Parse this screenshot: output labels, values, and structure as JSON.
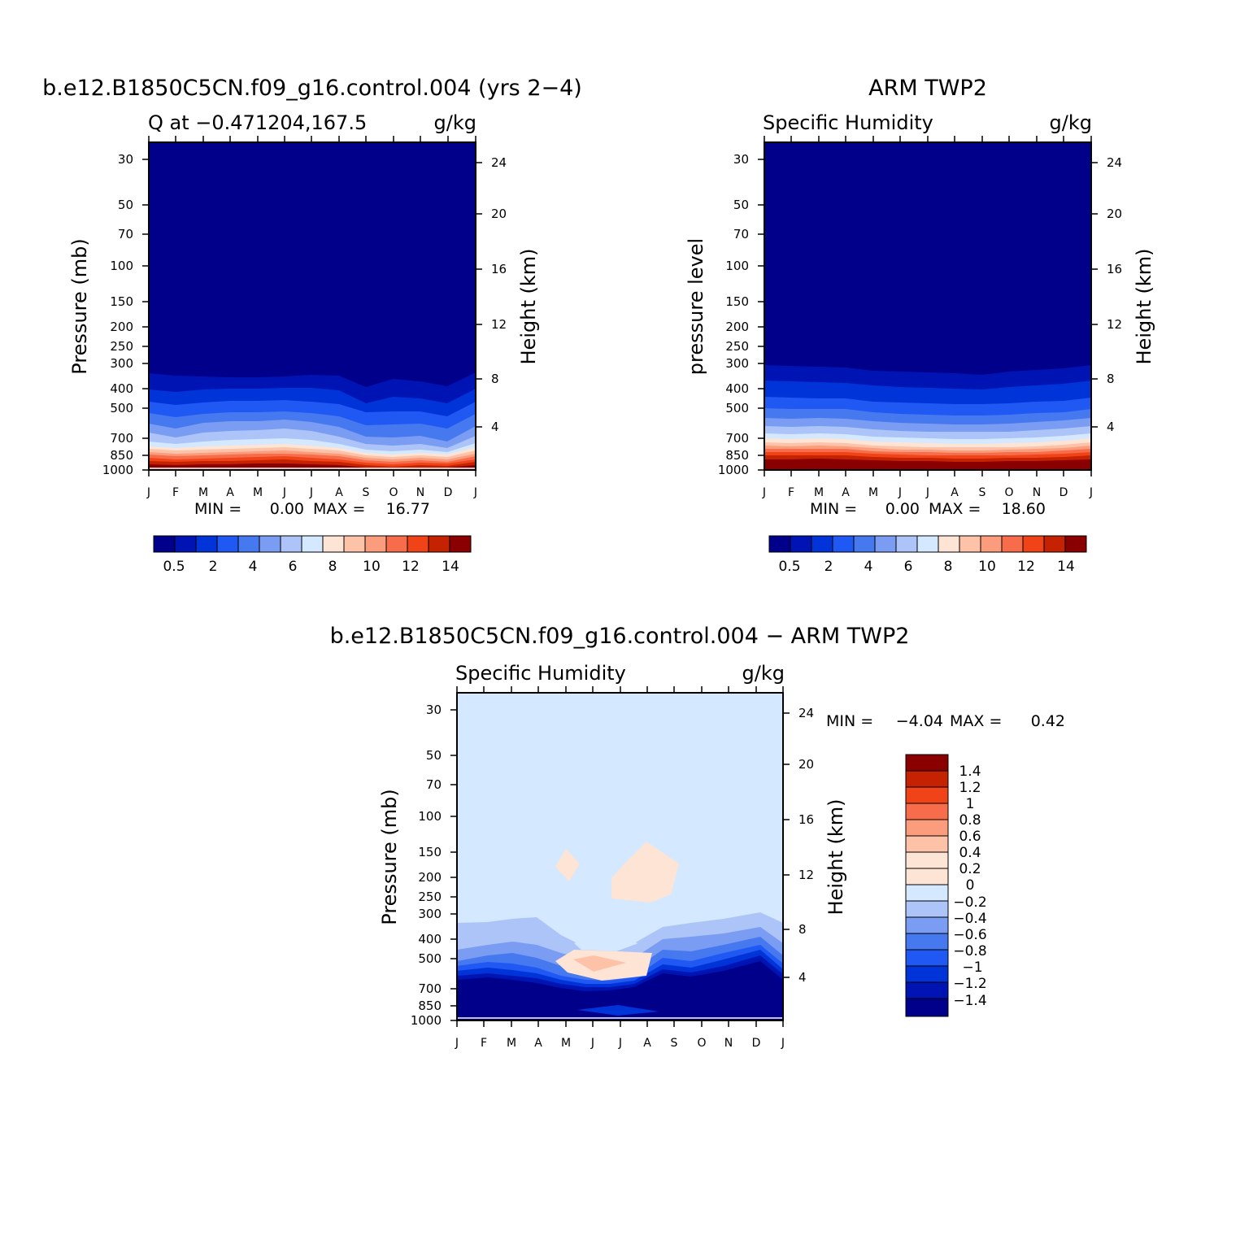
{
  "figure": {
    "months": [
      "J",
      "F",
      "M",
      "A",
      "M",
      "J",
      "J",
      "A",
      "S",
      "O",
      "N",
      "D",
      "J"
    ],
    "pressure_ticks": [
      "30",
      "50",
      "70",
      "100",
      "150",
      "200",
      "250",
      "300",
      "400",
      "500",
      "700",
      "850",
      "1000"
    ],
    "height_ticks": [
      "24",
      "20",
      "16",
      "12",
      "8",
      "4"
    ],
    "colors_abs": [
      "#00008a",
      "#0014b4",
      "#0034d8",
      "#1f58f2",
      "#4678f0",
      "#7a9cf2",
      "#adc4f8",
      "#d4e8ff",
      "#fee4d4",
      "#fdc2a8",
      "#fb9c7c",
      "#f76d4c",
      "#f04418",
      "#c42200",
      "#8a0000"
    ],
    "colors_diff": [
      "#00008a",
      "#0014b4",
      "#0034d8",
      "#1f58f2",
      "#4678f0",
      "#7a9cf2",
      "#adc4f8",
      "#d4e8ff",
      "#fee4d4",
      "#fdc2a8",
      "#fb9c7c",
      "#f76d4c",
      "#f04418",
      "#c42200",
      "#8a0000"
    ]
  },
  "panels": [
    {
      "title": "b.e12.B1850C5CN.f09_g16.control.004 (yrs 2−4)",
      "left_string": "Q at −0.471204,167.5",
      "right_string": "g/kg",
      "ylabel_left": "Pressure (mb)",
      "ylabel_right": "Height (km)",
      "min_label": "MIN =",
      "min_value": "0.00",
      "max_label": "MAX =",
      "max_value": "16.77",
      "colorbar_labels": [
        "0.5",
        "2",
        "4",
        "6",
        "8",
        "10",
        "12",
        "14"
      ]
    },
    {
      "title": "ARM TWP2",
      "left_string": "Specific Humidity",
      "right_string": "g/kg",
      "ylabel_left": "pressure level",
      "ylabel_right": "Height (km)",
      "min_label": "MIN =",
      "min_value": "0.00",
      "max_label": "MAX =",
      "max_value": "18.60",
      "colorbar_labels": [
        "0.5",
        "2",
        "4",
        "6",
        "8",
        "10",
        "12",
        "14"
      ]
    },
    {
      "title": "b.e12.B1850C5CN.f09_g16.control.004 − ARM TWP2",
      "left_string": "Specific Humidity",
      "right_string": "g/kg",
      "ylabel_left": "Pressure (mb)",
      "ylabel_right": "Height (km)",
      "min_label": "MIN =",
      "min_value": "−4.04",
      "max_label": "MAX =",
      "max_value": "0.42",
      "colorbar_labels": [
        "1.4",
        "1.2",
        "1",
        "0.8",
        "0.6",
        "0.4",
        "0.2",
        "0",
        "−0.2",
        "−0.4",
        "−0.6",
        "−0.8",
        "−1",
        "−1.2",
        "−1.4"
      ]
    }
  ],
  "chart_data": [
    {
      "type": "heatmap",
      "title": "b.e12.B1850C5CN.f09_g16.control.004 (yrs 2−4)",
      "variable": "Q at −0.471204,167.5",
      "units": "g/kg",
      "x": [
        "J",
        "F",
        "M",
        "A",
        "M",
        "J",
        "J",
        "A",
        "S",
        "O",
        "N",
        "D",
        "J"
      ],
      "y_pressure_mb": [
        30,
        50,
        70,
        100,
        150,
        200,
        250,
        300,
        400,
        500,
        700,
        850,
        1000
      ],
      "ylabel": "Pressure (mb)",
      "ylabel_right": "Height (km)",
      "contour_levels": [
        0.5,
        1,
        2,
        3,
        4,
        5,
        6,
        7,
        8,
        9,
        10,
        11,
        12,
        13,
        14
      ],
      "min": 0.0,
      "max": 16.77,
      "level_pressure_mb": {
        "0.5": [
          350,
          370,
          375,
          380,
          380,
          375,
          370,
          372,
          420,
          390,
          395,
          410,
          352
        ],
        "2": [
          430,
          470,
          460,
          455,
          455,
          455,
          460,
          470,
          540,
          540,
          535,
          585,
          480
        ],
        "4": [
          555,
          590,
          570,
          560,
          560,
          555,
          560,
          590,
          660,
          665,
          655,
          700,
          600
        ],
        "6": [
          690,
          720,
          705,
          695,
          690,
          685,
          695,
          720,
          780,
          790,
          780,
          800,
          720
        ],
        "8": [
          770,
          790,
          780,
          775,
          770,
          765,
          775,
          790,
          840,
          850,
          830,
          850,
          790
        ],
        "10": [
          820,
          840,
          830,
          825,
          820,
          815,
          825,
          840,
          880,
          890,
          870,
          880,
          840
        ],
        "12": [
          870,
          890,
          880,
          875,
          870,
          865,
          875,
          890,
          920,
          930,
          910,
          920,
          890
        ],
        "14": [
          930,
          940,
          935,
          930,
          930,
          925,
          930,
          945,
          965,
          975,
          955,
          960,
          940
        ]
      }
    },
    {
      "type": "heatmap",
      "title": "ARM TWP2",
      "variable": "Specific Humidity",
      "units": "g/kg",
      "x": [
        "J",
        "F",
        "M",
        "A",
        "M",
        "J",
        "J",
        "A",
        "S",
        "O",
        "N",
        "D",
        "J"
      ],
      "y_pressure_mb": [
        30,
        50,
        70,
        100,
        150,
        200,
        250,
        300,
        400,
        500,
        700,
        850,
        1000
      ],
      "ylabel": "pressure level",
      "ylabel_right": "Height (km)",
      "contour_levels": [
        0.5,
        1,
        2,
        3,
        4,
        5,
        6,
        7,
        8,
        9,
        10,
        11,
        12,
        13,
        14
      ],
      "min": 0.0,
      "max": 18.6,
      "level_pressure_mb": {
        "0.5": [
          310,
          318,
          322,
          325,
          340,
          345,
          348,
          352,
          358,
          345,
          338,
          330,
          310
        ],
        "2": [
          440,
          448,
          450,
          452,
          470,
          480,
          485,
          490,
          495,
          488,
          478,
          470,
          450
        ],
        "4": [
          570,
          575,
          572,
          575,
          590,
          600,
          605,
          610,
          610,
          605,
          595,
          585,
          570
        ],
        "6": [
          680,
          685,
          680,
          685,
          700,
          710,
          712,
          715,
          715,
          712,
          705,
          695,
          680
        ],
        "8": [
          760,
          760,
          758,
          760,
          775,
          785,
          788,
          790,
          790,
          788,
          782,
          772,
          760
        ],
        "10": [
          820,
          820,
          818,
          820,
          835,
          840,
          842,
          845,
          845,
          842,
          838,
          830,
          820
        ],
        "12": [
          880,
          878,
          876,
          878,
          888,
          895,
          897,
          900,
          900,
          898,
          893,
          886,
          880
        ],
        "14": [
          950,
          948,
          946,
          948,
          955,
          960,
          962,
          965,
          965,
          962,
          958,
          953,
          950
        ]
      }
    },
    {
      "type": "heatmap",
      "title": "b.e12.B1850C5CN.f09_g16.control.004 − ARM TWP2",
      "variable": "Specific Humidity",
      "units": "g/kg",
      "x": [
        "J",
        "F",
        "M",
        "A",
        "M",
        "J",
        "J",
        "A",
        "S",
        "O",
        "N",
        "D",
        "J"
      ],
      "y_pressure_mb": [
        30,
        50,
        70,
        100,
        150,
        200,
        250,
        300,
        400,
        500,
        700,
        850,
        1000
      ],
      "ylabel": "Pressure (mb)",
      "ylabel_right": "Height (km)",
      "contour_levels": [
        -1.4,
        -1.2,
        -1,
        -0.8,
        -0.6,
        -0.4,
        -0.2,
        0,
        0.2,
        0.4,
        0.6,
        0.8,
        1,
        1.2,
        1.4
      ],
      "min": -4.04,
      "max": 0.42,
      "level_pressure_mb": {
        "-0.2": [
          320,
          310,
          300,
          300,
          360,
          410,
          420,
          400,
          330,
          310,
          300,
          300,
          320
        ],
        "-0.4": [
          360,
          370,
          350,
          360,
          430,
          470,
          465,
          440,
          370,
          350,
          340,
          330,
          360
        ],
        "-0.8": [
          460,
          470,
          440,
          460,
          520,
          560,
          560,
          530,
          450,
          430,
          410,
          390,
          460
        ],
        "-1.2": [
          560,
          570,
          550,
          560,
          600,
          640,
          640,
          620,
          520,
          500,
          480,
          470,
          560
        ],
        "-1.4": [
          620,
          620,
          630,
          640,
          670,
          700,
          680,
          660,
          600,
          600,
          560,
          540,
          620
        ]
      },
      "positive_regions": [
        {
          "month_center": "M",
          "pressure_mb_range": [
            150,
            220
          ],
          "value_range": [
            0,
            0.2
          ]
        },
        {
          "month_center": "J",
          "pressure_mb_range": [
            140,
            260
          ],
          "value_range": [
            0,
            0.2
          ]
        },
        {
          "month_center": "J",
          "pressure_mb_range": [
            470,
            560
          ],
          "value_range": [
            0,
            0.42
          ]
        }
      ]
    }
  ]
}
